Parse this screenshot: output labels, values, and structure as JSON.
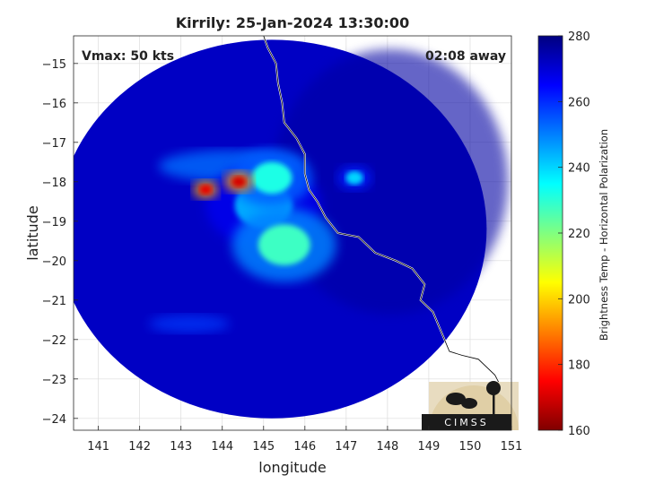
{
  "chart_data": {
    "type": "heatmap",
    "title": "Kirrily: 25-Jan-2024 13:30:00",
    "xlabel": "longitude",
    "ylabel": "latitude",
    "xlim": [
      140.4,
      151
    ],
    "ylim": [
      -24.3,
      -14.3
    ],
    "xticks": [
      141,
      142,
      143,
      144,
      145,
      146,
      147,
      148,
      149,
      150,
      151
    ],
    "yticks": [
      -15,
      -16,
      -17,
      -18,
      -19,
      -20,
      -21,
      -22,
      -23,
      -24
    ],
    "grid": true,
    "annotations": {
      "vmax": "Vmax: 50 kts",
      "away": "02:08 away"
    },
    "colorbar": {
      "label": "Brightness Temp - Horizontal Polarization",
      "range": [
        160,
        280
      ],
      "ticks": [
        280,
        260,
        240,
        220,
        200,
        180,
        160
      ],
      "colormap": "jet"
    },
    "storm_center": {
      "lon": 145.6,
      "lat": -19.6
    },
    "swath": {
      "center_lon": 145.2,
      "center_lat": -19.2,
      "radius_lon": 5.2,
      "radius_lat": 4.8
    },
    "features": [
      {
        "lon": 145.5,
        "lat": -19.6,
        "tb": 228,
        "size": 0.9
      },
      {
        "lon": 145.2,
        "lat": -17.9,
        "tb": 232,
        "size": 0.7
      },
      {
        "lon": 144.4,
        "lat": -18.0,
        "tb": 170,
        "size": 0.25
      },
      {
        "lon": 143.6,
        "lat": -18.2,
        "tb": 172,
        "size": 0.22
      },
      {
        "lon": 145.0,
        "lat": -18.6,
        "tb": 245,
        "size": 1.0
      },
      {
        "lon": 147.2,
        "lat": -17.9,
        "tb": 240,
        "size": 0.3
      }
    ],
    "coastline": [
      [
        145.0,
        -14.3
      ],
      [
        145.1,
        -14.6
      ],
      [
        145.3,
        -15.0
      ],
      [
        145.35,
        -15.5
      ],
      [
        145.45,
        -16.0
      ],
      [
        145.5,
        -16.5
      ],
      [
        145.8,
        -16.9
      ],
      [
        146.0,
        -17.3
      ],
      [
        146.0,
        -17.8
      ],
      [
        146.1,
        -18.2
      ],
      [
        146.3,
        -18.5
      ],
      [
        146.5,
        -18.9
      ],
      [
        146.8,
        -19.3
      ],
      [
        147.3,
        -19.4
      ],
      [
        147.7,
        -19.8
      ],
      [
        148.2,
        -20.0
      ],
      [
        148.6,
        -20.2
      ],
      [
        148.9,
        -20.6
      ],
      [
        148.8,
        -21.0
      ],
      [
        149.1,
        -21.3
      ],
      [
        149.3,
        -21.8
      ],
      [
        149.5,
        -22.3
      ],
      [
        149.8,
        -22.4
      ],
      [
        150.2,
        -22.5
      ],
      [
        150.6,
        -22.9
      ],
      [
        150.8,
        -23.3
      ],
      [
        151.0,
        -23.6
      ]
    ]
  },
  "logo": {
    "text": "CIMSS"
  }
}
